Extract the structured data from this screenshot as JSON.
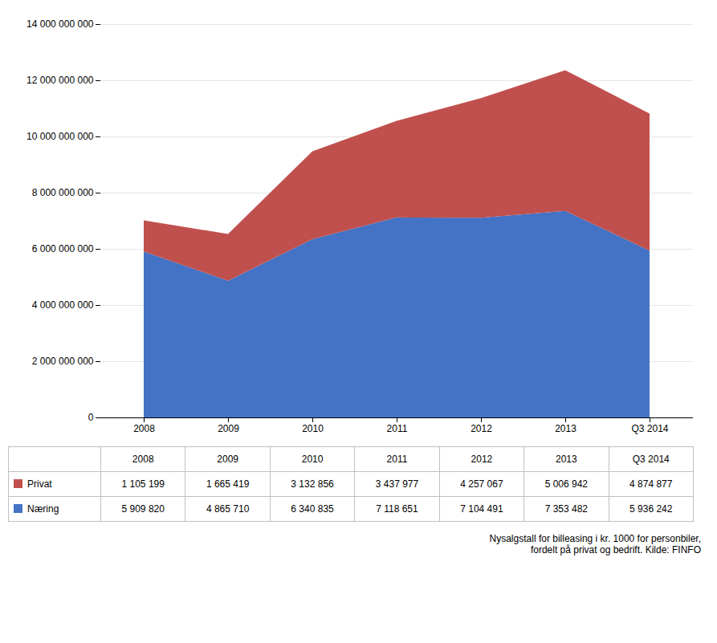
{
  "chart_data": {
    "type": "area",
    "stacked": true,
    "categories": [
      "2008",
      "2009",
      "2010",
      "2011",
      "2012",
      "2013",
      "Q3 2014"
    ],
    "series": [
      {
        "name": "Næring",
        "color": "#4472c4",
        "values": [
          5909820000,
          4865710000,
          6340835000,
          7118651000,
          7104491000,
          7353482000,
          5936242000
        ],
        "value_labels": [
          "5 909 820",
          "4 865 710",
          "6 340 835",
          "7 118 651",
          "7 104 491",
          "7 353 482",
          "5 936 242"
        ]
      },
      {
        "name": "Privat",
        "color": "#c0504d",
        "values": [
          1105199000,
          1665419000,
          3132856000,
          3437977000,
          4257067000,
          5006942000,
          4874877000
        ],
        "value_labels": [
          "1 105 199",
          "1 665 419",
          "3 132 856",
          "3 437 977",
          "4 257 067",
          "5 006 942",
          "4 874 877"
        ]
      }
    ],
    "ylim": [
      0,
      14000000000
    ],
    "yticks": [
      0,
      {
        "value": 2000000000,
        "label": "2 000 000 000"
      },
      {
        "value": 4000000000,
        "label": "4 000 000 000"
      },
      {
        "value": 6000000000,
        "label": "6 000 000 000"
      },
      {
        "value": 8000000000,
        "label": "8 000 000 000"
      },
      {
        "value": 10000000000,
        "label": "10 000 000 000"
      },
      {
        "value": 12000000000,
        "label": "12 000 000 000"
      },
      {
        "value": 14000000000,
        "label": "14 000 000 000"
      }
    ],
    "grid": true,
    "annotation": "Nysalgstall for billeasing i kr. 1000 for personbiler,\nfordelt på privat og bedrift. Kilde: FINFO"
  }
}
